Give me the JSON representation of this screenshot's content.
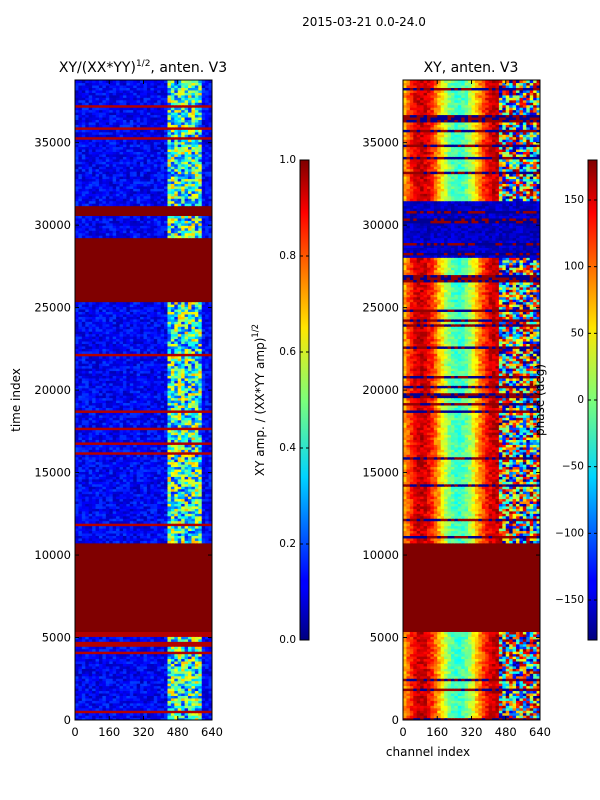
{
  "figure": {
    "suptitle": "2015-03-21 0.0-24.0"
  },
  "chart_data": [
    {
      "type": "heatmap",
      "id": "amplitude",
      "title": "XY/(XX*YY)^{1/2}, anten. V3",
      "title_main": "XY/(XX*YY)",
      "title_sup": "1/2",
      "title_tail": ", anten. V3",
      "xlabel": "",
      "ylabel": "time index",
      "xlim": [
        0,
        640
      ],
      "ylim": [
        0,
        38800
      ],
      "xticks": [
        "0",
        "160",
        "320",
        "480",
        "640"
      ],
      "yticks": [
        "0",
        "5000",
        "10000",
        "15000",
        "20000",
        "25000",
        "30000",
        "35000"
      ],
      "saturated_blocks": [
        [
          5400,
          10800
        ],
        [
          25300,
          29300
        ],
        [
          30600,
          31200
        ]
      ],
      "colorbar": {
        "label": "XY amp. / (XX*YY amp)^{1/2}",
        "label_main": "XY amp. / (XX*YY amp)",
        "label_sup": "1/2",
        "range": [
          0.0,
          1.0
        ],
        "ticks": [
          "0.0",
          "0.2",
          "0.4",
          "0.6",
          "0.8",
          "1.0"
        ],
        "colormap": "jet"
      }
    },
    {
      "type": "heatmap",
      "id": "phase",
      "title": "XY, anten. V3",
      "xlabel": "channel index",
      "ylabel": "",
      "xlim": [
        0,
        640
      ],
      "ylim": [
        0,
        38800
      ],
      "xticks": [
        "0",
        "160",
        "320",
        "480",
        "640"
      ],
      "yticks": [
        "0",
        "5000",
        "10000",
        "15000",
        "20000",
        "25000",
        "30000",
        "35000"
      ],
      "saturated_blocks": [
        [
          5400,
          10800
        ]
      ],
      "colorbar": {
        "label": "phase (deg)",
        "range": [
          -180,
          180
        ],
        "ticks": [
          "-150",
          "-100",
          "-50",
          "0",
          "50",
          "100",
          "150"
        ],
        "colormap": "jet"
      }
    }
  ],
  "colors": {
    "jet_low": "#00007f",
    "jet_high": "#7f0000",
    "axis": "#000000"
  }
}
